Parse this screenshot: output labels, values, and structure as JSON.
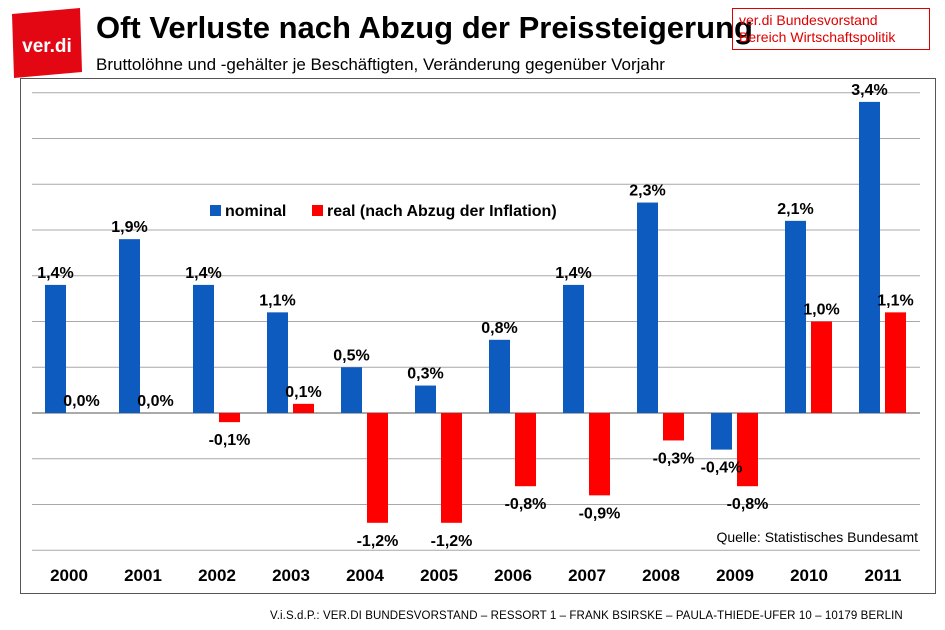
{
  "header": {
    "logo_text": "ver.di",
    "title": "Oft Verluste nach Abzug der Preissteigerung",
    "subtitle": "Bruttolöhne und -gehälter je Beschäftigten, Veränderung gegenüber Vorjahr",
    "org_line1": "ver.di Bundesvorstand",
    "org_line2": "Bereich Wirtschaftspolitik"
  },
  "chart_data": {
    "type": "bar",
    "categories": [
      "2000",
      "2001",
      "2002",
      "2003",
      "2004",
      "2005",
      "2006",
      "2007",
      "2008",
      "2009",
      "2010",
      "2011"
    ],
    "series": [
      {
        "name": "nominal",
        "color": "#0d5bbf",
        "values": [
          1.4,
          1.9,
          1.4,
          1.1,
          0.5,
          0.3,
          0.8,
          1.4,
          2.3,
          -0.4,
          2.1,
          3.4
        ],
        "labels": [
          "1,4%",
          "1,9%",
          "1,4%",
          "1,1%",
          "0,5%",
          "0,3%",
          "0,8%",
          "1,4%",
          "2,3%",
          "-0,4%",
          "2,1%",
          "3,4%"
        ]
      },
      {
        "name": "real (nach Abzug der Inflation)",
        "color": "#ff0000",
        "values": [
          0.0,
          0.0,
          -0.1,
          0.1,
          -1.2,
          -1.2,
          -0.8,
          -0.9,
          -0.3,
          -0.8,
          1.0,
          1.1
        ],
        "labels": [
          "0,0%",
          "0,0%",
          "-0,1%",
          "0,1%",
          "-1,2%",
          "-1,2%",
          "-0,8%",
          "-0,9%",
          "-0,3%",
          "-0,8%",
          "1,0%",
          "1,1%"
        ]
      }
    ],
    "ylim": [
      -1.5,
      3.5
    ],
    "grid": true,
    "legend": "top-center",
    "source": "Quelle: Statistisches Bundesamt"
  },
  "footer": {
    "text": "V.i.S.d.P.: VER.DI BUNDESVORSTAND – RESSORT 1 – FRANK BSIRSKE – PAULA-THIEDE-UFER 10 – 10179 BERLIN"
  }
}
